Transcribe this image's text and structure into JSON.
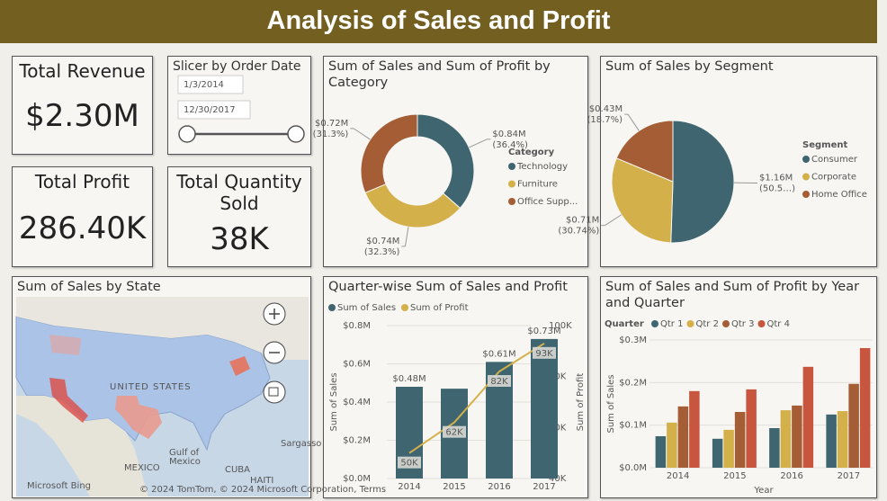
{
  "header": {
    "title": "Analysis of Sales and Profit"
  },
  "cards": [
    {
      "label": "Total Revenue",
      "value": "$2.30M"
    },
    {
      "label": "Total Profit",
      "value": "286.40K"
    },
    {
      "label": "Total Quantity Sold",
      "value": "38K"
    }
  ],
  "slicer": {
    "title": "Slicer by Order Date",
    "start": "1/3/2014",
    "end": "12/30/2017"
  },
  "map": {
    "title": "Sum of Sales by State",
    "labels": [
      "UNITED STATES",
      "Gulf of",
      "Mexico",
      "MEXICO",
      "CUBA",
      "HAITI",
      "Sargasso",
      "Microsoft Bing",
      "© 2024 TomTom, © 2024 Microsoft Corporation, Terms"
    ]
  },
  "chart_data": [
    {
      "type": "donut",
      "title": "Sum of Sales and Sum of Profit by Category",
      "legend_title": "Category",
      "categories": [
        "Technology",
        "Furniture",
        "Office Supp..."
      ],
      "values": [
        36.4,
        32.3,
        31.3
      ],
      "value_labels": [
        "(36.4%)",
        "(32.3%)",
        "(31.3%)"
      ],
      "amounts": [
        840000,
        740000,
        720000
      ],
      "amount_labels": [
        "$0.84M",
        "$0.74M",
        "$0.72M"
      ],
      "colors": [
        "#3f6670",
        "#d4b04a",
        "#a55d35"
      ]
    },
    {
      "type": "pie",
      "title": "Sum of Sales by Segment",
      "legend_title": "Segment",
      "categories": [
        "Consumer",
        "Corporate",
        "Home Office"
      ],
      "values": [
        50.5,
        30.74,
        18.7
      ],
      "value_labels": [
        "(50.5…)",
        "(30.74%)",
        "(18.7%)"
      ],
      "amounts": [
        1160000,
        710000,
        430000
      ],
      "amount_labels": [
        "$1.16M",
        "$0.71M",
        "$0.43M"
      ],
      "colors": [
        "#3f6670",
        "#d4b04a",
        "#a55d35"
      ]
    },
    {
      "type": "combo",
      "title": "Quarter-wise Sum of Sales and Profit",
      "categories": [
        "2014",
        "2015",
        "2016",
        "2017"
      ],
      "y_label": "Sum of Sales",
      "y2_label": "Sum of Profit",
      "ylim": [
        0,
        800000
      ],
      "yticks": [
        {
          "value": 0,
          "label": "$0.0M"
        },
        {
          "value": 200000,
          "label": "$0.2M"
        },
        {
          "value": 400000,
          "label": "$0.4M"
        },
        {
          "value": 600000,
          "label": "$0.6M"
        },
        {
          "value": 800000,
          "label": "$0.8M"
        }
      ],
      "y2lim": [
        40000,
        100000
      ],
      "y2ticks": [
        {
          "value": 40000,
          "label": "40K"
        },
        {
          "value": 60000,
          "label": "60K"
        },
        {
          "value": 80000,
          "label": "80K"
        },
        {
          "value": 100000,
          "label": "100K"
        }
      ],
      "series": [
        {
          "name": "Sum of Sales",
          "color": "#3f6670",
          "values": [
            480000,
            470000,
            610000,
            730000
          ],
          "value_labels": [
            "$0.48M",
            null,
            "$0.61M",
            "$0.73M"
          ]
        },
        {
          "name": "Sum of Profit",
          "color": "#d4b04a",
          "axis": "y2",
          "values": [
            50000,
            62000,
            82000,
            93000
          ],
          "value_labels": [
            "50K",
            "62K",
            "82K",
            "93K"
          ]
        }
      ]
    },
    {
      "type": "grouped_bar",
      "title": "Sum of Sales and Sum of Profit by Year and Quarter",
      "legend_title": "Quarter",
      "categories": [
        "2014",
        "2015",
        "2016",
        "2017"
      ],
      "x_label": "Year",
      "y_label": "Sum of Sales",
      "ylim": [
        0,
        300000
      ],
      "yticks": [
        {
          "value": 0,
          "label": "$0.0M"
        },
        {
          "value": 100000,
          "label": "$0.1M"
        },
        {
          "value": 200000,
          "label": "$0.2M"
        },
        {
          "value": 300000,
          "label": "$0.3M"
        }
      ],
      "series": [
        {
          "name": "Qtr 1",
          "color": "#3f6670",
          "values": [
            74000,
            68000,
            93000,
            125000
          ]
        },
        {
          "name": "Qtr 2",
          "color": "#d4b04a",
          "values": [
            106000,
            89000,
            135000,
            133000
          ]
        },
        {
          "name": "Qtr 3",
          "color": "#a55d35",
          "values": [
            144000,
            131000,
            146000,
            197000
          ]
        },
        {
          "name": "Qtr 4",
          "color": "#c8553d",
          "values": [
            180000,
            184000,
            237000,
            281000
          ]
        }
      ]
    }
  ]
}
